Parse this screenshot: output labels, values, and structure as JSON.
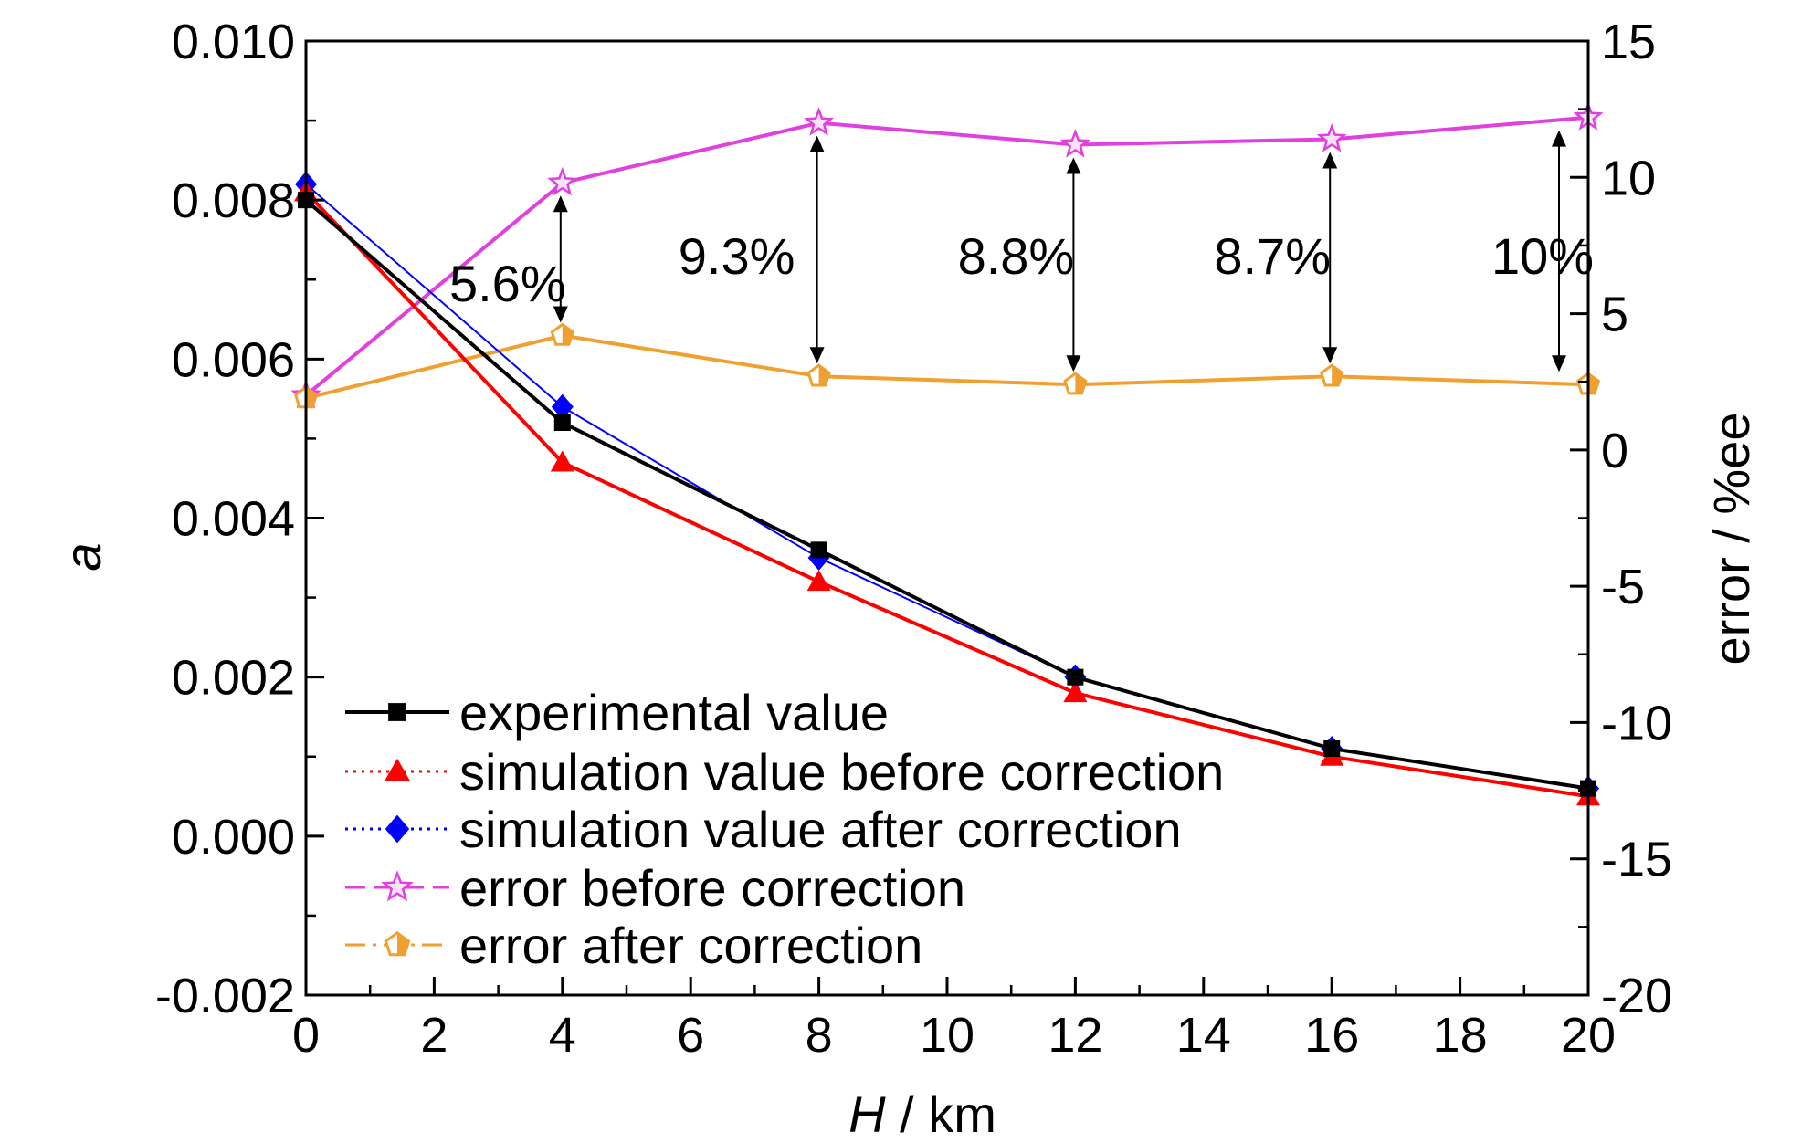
{
  "chart_data": {
    "type": "line",
    "xlabel_italic": "H",
    "xlabel_unit": " / km",
    "ylabel": "a",
    "y2label": "error / %ee",
    "xlim": [
      0,
      20
    ],
    "ylim": [
      -0.002,
      0.01
    ],
    "y2lim": [
      -20,
      15
    ],
    "x_ticks": [
      "0",
      "2",
      "4",
      "6",
      "8",
      "10",
      "12",
      "14",
      "16",
      "18",
      "20"
    ],
    "y_ticks": [
      "-0.002",
      "0.000",
      "0.002",
      "0.004",
      "0.006",
      "0.008",
      "0.010"
    ],
    "y2_ticks": [
      "-20",
      "-15",
      "-10",
      "-5",
      "0",
      "5",
      "10",
      "15"
    ],
    "grid": false,
    "legend_position": "bottom-left",
    "x": [
      0,
      4,
      8,
      12,
      16,
      20
    ],
    "series": [
      {
        "name": "experimental value",
        "axis": "left",
        "color": "#000000",
        "marker": "square",
        "dash": "solid",
        "values": [
          0.008,
          0.0052,
          0.0036,
          0.002,
          0.0011,
          0.0006
        ]
      },
      {
        "name": "simulation value before correction",
        "axis": "left",
        "color": "#ff0000",
        "marker": "triangle",
        "dash": "dotted",
        "values": [
          0.0081,
          0.0047,
          0.0032,
          0.0018,
          0.001,
          0.0005
        ]
      },
      {
        "name": "simulation value after correction",
        "axis": "left",
        "color": "#0000ff",
        "marker": "diamond",
        "dash": "dotted",
        "values": [
          0.0082,
          0.0054,
          0.0035,
          0.002,
          0.0011,
          0.0006
        ]
      },
      {
        "name": "error before correction",
        "axis": "right",
        "color": "#e040e0",
        "marker": "star",
        "dash": "dashed",
        "values": [
          2.0,
          9.8,
          12.0,
          11.2,
          11.4,
          12.2
        ]
      },
      {
        "name": "error after correction",
        "axis": "right",
        "color": "#f0a030",
        "marker": "pentagon",
        "dash": "dashdot",
        "values": [
          1.9,
          4.2,
          2.7,
          2.4,
          2.7,
          2.4
        ]
      }
    ],
    "annotations": [
      {
        "x": 4,
        "text": "5.6%"
      },
      {
        "x": 8,
        "text": "9.3%"
      },
      {
        "x": 12,
        "text": "8.8%"
      },
      {
        "x": 16,
        "text": "8.7%"
      },
      {
        "x": 20,
        "text": "10%"
      }
    ]
  }
}
